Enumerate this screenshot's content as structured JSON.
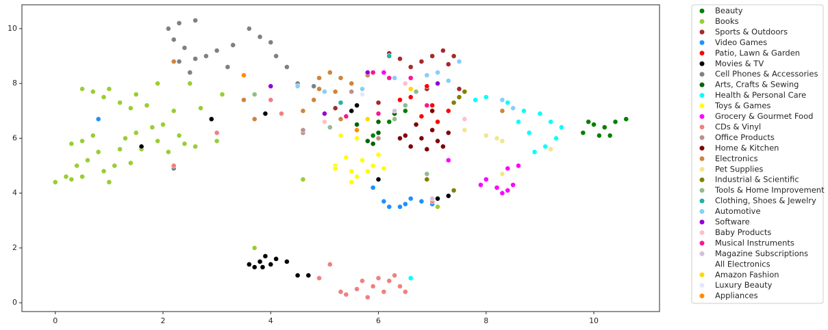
{
  "chart_data": {
    "type": "scatter",
    "xlim": [
      -0.62,
      11.22
    ],
    "ylim": [
      -0.32,
      10.87
    ],
    "xticks": [
      0,
      2,
      4,
      6,
      8,
      10
    ],
    "yticks": [
      0,
      2,
      4,
      6,
      8,
      10
    ],
    "grid": false,
    "legend": "outside-right",
    "series": [
      {
        "name": "Beauty",
        "color": "#008000",
        "x": [
          9.8,
          10.0,
          10.2,
          10.3,
          10.4,
          10.6,
          10.1,
          9.9,
          6.2,
          6.5,
          5.9
        ],
        "y": [
          6.2,
          6.5,
          6.4,
          6.1,
          6.6,
          6.7,
          6.1,
          6.6,
          6.6,
          7.0,
          6.1
        ]
      },
      {
        "name": "Books",
        "color": "#9acd32",
        "x": [
          0,
          0.2,
          0.3,
          0.5,
          0.4,
          0.6,
          0.3,
          0.5,
          0.7,
          0.8,
          0.9,
          1.0,
          1.1,
          1.2,
          1.3,
          1.5,
          1.6,
          1.4,
          1.8,
          1.9,
          2.0,
          2.1,
          2.3,
          2.4,
          2.6,
          0.5,
          0.7,
          0.9,
          1.0,
          1.2,
          1.4,
          1.5,
          1.7,
          1.9,
          2.2,
          2.5,
          2.7,
          3.0,
          3.1,
          3.7,
          4.6,
          7.1
        ],
        "y": [
          4.4,
          4.6,
          4.5,
          4.6,
          5.0,
          5.2,
          5.8,
          5.9,
          6.1,
          5.5,
          4.8,
          4.4,
          5.0,
          5.6,
          6.0,
          6.2,
          5.6,
          5.1,
          6.4,
          5.9,
          6.5,
          5.5,
          6.1,
          5.8,
          5.7,
          7.8,
          7.7,
          7.5,
          7.8,
          7.3,
          7.1,
          7.6,
          7.2,
          8.0,
          7.0,
          8.0,
          7.1,
          5.9,
          7.6,
          2.0,
          4.5,
          3.5
        ]
      },
      {
        "name": "Sports & Outdoors",
        "color": "#a52a2a",
        "x": [
          6.2,
          6.4,
          6.8,
          7.0,
          7.2,
          7.4,
          7.3,
          6.6,
          6.9,
          5.2,
          6.0,
          7.5
        ],
        "y": [
          9.1,
          8.9,
          8.8,
          9.0,
          9.2,
          9.0,
          8.7,
          8.6,
          7.8,
          7.1,
          7.3,
          7.8
        ]
      },
      {
        "name": "Video Games",
        "color": "#1e90ff",
        "x": [
          6.1,
          6.2,
          6.4,
          6.5,
          6.6,
          6.8,
          7.0,
          5.9,
          0.8
        ],
        "y": [
          3.7,
          3.5,
          3.5,
          3.6,
          3.8,
          3.7,
          3.6,
          4.2,
          6.7
        ]
      },
      {
        "name": "Patio, Lawn & Garden",
        "color": "#ff0000",
        "x": [
          6.8,
          7.0,
          7.1,
          7.3,
          6.6,
          6.9,
          6.4
        ],
        "y": [
          6.8,
          7.2,
          6.6,
          7.0,
          7.5,
          7.9,
          7.4
        ]
      },
      {
        "name": "Movies & TV",
        "color": "#000000",
        "x": [
          3.6,
          3.7,
          3.8,
          3.9,
          4.0,
          4.1,
          4.3,
          4.5,
          4.7,
          3.85,
          2.9,
          3.9,
          1.6,
          5.5,
          5.6,
          6.0,
          7.1,
          7.3
        ],
        "y": [
          1.4,
          1.3,
          1.5,
          1.7,
          1.4,
          1.6,
          1.5,
          1.0,
          1.0,
          1.3,
          6.7,
          6.9,
          5.7,
          7.0,
          7.2,
          4.5,
          3.8,
          3.9
        ]
      },
      {
        "name": "Cell Phones & Accessories",
        "color": "#808080",
        "x": [
          2.1,
          2.2,
          2.3,
          2.4,
          2.6,
          2.3,
          2.6,
          2.8,
          3.0,
          3.3,
          3.6,
          3.8,
          4.0,
          4.1,
          4.3,
          3.2,
          2.5,
          4.5,
          4.8,
          2.2
        ],
        "y": [
          10.0,
          9.6,
          10.2,
          9.3,
          10.3,
          8.8,
          8.9,
          9.0,
          9.2,
          9.4,
          10.0,
          9.7,
          9.5,
          9.0,
          8.6,
          8.6,
          8.4,
          8.0,
          7.9,
          4.9
        ]
      },
      {
        "name": "Arts, Crafts & Sewing",
        "color": "#006400",
        "x": [
          5.8,
          6.0,
          6.3,
          5.6,
          6.0,
          5.9
        ],
        "y": [
          5.9,
          6.2,
          6.9,
          6.5,
          6.6,
          5.8
        ]
      },
      {
        "name": "Health & Personal Care",
        "color": "#00ffff",
        "x": [
          8.0,
          8.4,
          8.7,
          9.0,
          9.2,
          9.3,
          9.1,
          9.4,
          8.9,
          8.8,
          8.6,
          7.8,
          6.6
        ],
        "y": [
          7.5,
          7.3,
          7.0,
          6.9,
          6.6,
          6.0,
          5.7,
          6.4,
          5.5,
          6.2,
          6.6,
          7.4,
          0.9
        ]
      },
      {
        "name": "Toys & Games",
        "color": "#ffff00",
        "x": [
          5.2,
          5.4,
          5.5,
          5.6,
          5.7,
          5.8,
          5.9,
          6.0,
          6.1,
          5.3,
          5.6,
          5.5,
          5.2
        ],
        "y": [
          5.0,
          5.3,
          4.8,
          4.6,
          5.2,
          4.8,
          5.0,
          5.4,
          4.9,
          6.1,
          6.0,
          4.4,
          4.9
        ]
      },
      {
        "name": "Grocery & Gourmet Food",
        "color": "#ff00ff",
        "x": [
          8.0,
          8.2,
          8.3,
          8.4,
          8.5,
          8.4,
          8.6,
          7.9,
          6.1,
          7.3
        ],
        "y": [
          4.5,
          4.2,
          4.0,
          4.1,
          4.3,
          4.9,
          5.0,
          4.3,
          8.4,
          5.2
        ]
      },
      {
        "name": "CDs & Vinyl",
        "color": "#f08080",
        "x": [
          4.9,
          5.1,
          5.3,
          5.4,
          5.6,
          5.8,
          5.9,
          6.0,
          6.1,
          6.2,
          6.3,
          6.4,
          6.5,
          5.7,
          4.2,
          4.0,
          2.2,
          7.0,
          3.0
        ],
        "y": [
          0.9,
          1.4,
          0.4,
          0.3,
          0.5,
          0.2,
          0.6,
          0.9,
          0.4,
          0.8,
          1.0,
          0.6,
          0.4,
          0.8,
          6.9,
          7.4,
          5.0,
          3.7,
          6.2
        ]
      },
      {
        "name": "Office Products",
        "color": "#bc8f8f",
        "x": [
          4.6,
          4.6,
          5.5,
          6.0
        ],
        "y": [
          6.2,
          6.3,
          7.7,
          6.0
        ]
      },
      {
        "name": "Home & Kitchen",
        "color": "#800000",
        "x": [
          6.5,
          6.6,
          6.8,
          6.9,
          7.0,
          7.1,
          7.2,
          7.3,
          6.7,
          7.0,
          6.4
        ],
        "y": [
          6.1,
          5.7,
          6.0,
          5.6,
          6.3,
          5.9,
          5.7,
          6.2,
          6.5,
          7.0,
          6.0
        ]
      },
      {
        "name": "Electronics",
        "color": "#cd853f",
        "x": [
          4.9,
          5.1,
          5.3,
          5.2,
          5.5,
          5.8,
          4.8,
          4.6,
          5.3,
          2.2,
          3.5,
          3.7,
          4.9,
          8.3
        ],
        "y": [
          8.2,
          8.4,
          8.2,
          7.7,
          8.0,
          8.3,
          7.4,
          7.0,
          6.7,
          8.8,
          7.4,
          6.7,
          7.8,
          7.0
        ]
      },
      {
        "name": "Pet Supplies",
        "color": "#f0e68c",
        "x": [
          8.0,
          8.2,
          8.3,
          7.6,
          9.2,
          8.3
        ],
        "y": [
          6.1,
          6.0,
          5.9,
          6.3,
          5.6,
          4.7
        ]
      },
      {
        "name": "Industrial & Scientific",
        "color": "#808000",
        "x": [
          7.5,
          7.6,
          7.4,
          6.9,
          7.4
        ],
        "y": [
          7.5,
          7.7,
          7.3,
          4.5,
          4.1
        ]
      },
      {
        "name": "Tools & Home Improvement",
        "color": "#8fbc8f",
        "x": [
          6.5,
          6.7,
          5.1,
          6.9,
          3.7,
          6.3
        ],
        "y": [
          7.2,
          7.7,
          6.4,
          4.7,
          7.6,
          6.7
        ]
      },
      {
        "name": "Clothing, Shoes & Jewelry",
        "color": "#20b2aa",
        "x": [
          6.2,
          5.3
        ],
        "y": [
          9.0,
          7.3
        ]
      },
      {
        "name": "Automotive",
        "color": "#87cefa",
        "x": [
          6.9,
          7.1,
          7.3,
          7.5,
          5.0,
          5.7,
          8.3,
          8.5,
          6.3,
          4.5
        ],
        "y": [
          8.3,
          8.4,
          8.1,
          8.8,
          7.7,
          7.8,
          7.4,
          7.1,
          8.2,
          7.9
        ]
      },
      {
        "name": "Software",
        "color": "#9400d3",
        "x": [
          4.0,
          5.0,
          5.8,
          7.1
        ],
        "y": [
          7.9,
          6.9,
          8.4,
          8.0
        ]
      },
      {
        "name": "Baby Products",
        "color": "#ffc0cb",
        "x": [
          7.6,
          5.0,
          6.5
        ],
        "y": [
          6.7,
          6.6,
          8.0
        ]
      },
      {
        "name": "Musical Instruments",
        "color": "#ff1493",
        "x": [
          5.9,
          6.2,
          6.6,
          6.0,
          5.4,
          6.9
        ],
        "y": [
          8.4,
          8.2,
          8.2,
          6.9,
          6.8,
          7.2
        ]
      },
      {
        "name": "Magazine Subscriptions",
        "color": "#d8bfd8",
        "x": [
          6.3,
          7.0
        ],
        "y": [
          7.0,
          3.8
        ]
      },
      {
        "name": "All Electronics",
        "color": "#ffffff",
        "x": [],
        "y": []
      },
      {
        "name": "Amazon Fashion",
        "color": "#ffd700",
        "x": [
          5.8,
          6.6
        ],
        "y": [
          6.7,
          7.8
        ]
      },
      {
        "name": "Luxury Beauty",
        "color": "#e6e6fa",
        "x": [
          5.7
        ],
        "y": [
          7.6
        ]
      },
      {
        "name": "Appliances",
        "color": "#ff8c00",
        "x": [
          5.6,
          3.5
        ],
        "y": [
          6.3,
          8.3
        ]
      }
    ]
  }
}
